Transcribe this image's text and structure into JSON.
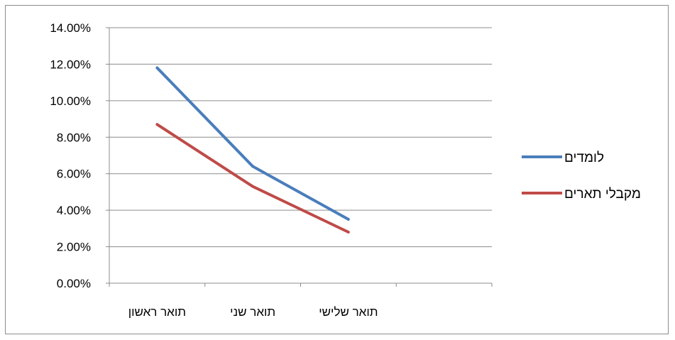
{
  "chart_data": {
    "type": "line",
    "categories": [
      "תואר ראשון",
      "תואר שני",
      "תואר שלישי"
    ],
    "series": [
      {
        "name": "לומדים",
        "values": [
          11.8,
          6.4,
          3.5
        ],
        "color": "#4a7ebb"
      },
      {
        "name": "מקבלי תארים",
        "values": [
          8.7,
          5.3,
          2.8
        ],
        "color": "#be4b48"
      }
    ],
    "y_ticks": [
      "0.00%",
      "2.00%",
      "4.00%",
      "6.00%",
      "8.00%",
      "10.00%",
      "12.00%",
      "14.00%"
    ],
    "ylim": [
      0,
      14
    ],
    "grid": true,
    "legend_position": "right"
  }
}
